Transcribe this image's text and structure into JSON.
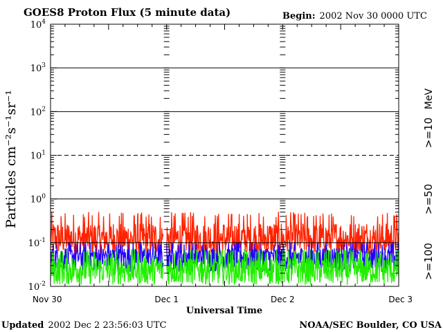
{
  "chart_data": {
    "type": "line",
    "title": "GOES8 Proton Flux (5 minute data)",
    "begin_label": "Begin:",
    "begin_value": "2002 Nov 30 0000 UTC",
    "xlabel": "Universal Time",
    "ylabel": "Particles cm⁻²s⁻¹sr⁻¹",
    "yscale": "log",
    "ylim": [
      0.01,
      10000
    ],
    "x_unit": "days since 2002-11-30 00:00 UTC",
    "xlim": [
      0,
      3
    ],
    "x_ticks": [
      {
        "value": 0,
        "label": "Nov 30"
      },
      {
        "value": 1,
        "label": "Dec 1"
      },
      {
        "value": 2,
        "label": "Dec 2"
      },
      {
        "value": 3,
        "label": "Dec 3"
      }
    ],
    "y_ticks": [
      {
        "value": 0.01,
        "base": "10",
        "exp": "-2"
      },
      {
        "value": 0.1,
        "base": "10",
        "exp": "-1"
      },
      {
        "value": 1,
        "base": "10",
        "exp": "0"
      },
      {
        "value": 10,
        "base": "10",
        "exp": "1"
      },
      {
        "value": 100,
        "base": "10",
        "exp": "2"
      },
      {
        "value": 1000,
        "base": "10",
        "exp": "3"
      },
      {
        "value": 10000,
        "base": "10",
        "exp": "4"
      }
    ],
    "dashed_gridlines": [
      10
    ],
    "legend_position": "right",
    "unit_label": "MeV",
    "series": [
      {
        "name": ">=10",
        "color": "#ff2200",
        "typical_value": 0.12,
        "range": [
          0.05,
          0.5
        ]
      },
      {
        "name": ">=50",
        "color": "#2200ff",
        "typical_value": 0.05,
        "range": [
          0.02,
          0.1
        ]
      },
      {
        "name": ">=100",
        "color": "#22ee00",
        "typical_value": 0.025,
        "range": [
          0.01,
          0.07
        ]
      }
    ],
    "data_gap_days": [
      0.97,
      1.0
    ]
  },
  "footer": {
    "updated_label": "Updated",
    "updated_value": "2002 Dec  2 23:56:03 UTC",
    "source": "NOAA/SEC Boulder, CO USA"
  }
}
